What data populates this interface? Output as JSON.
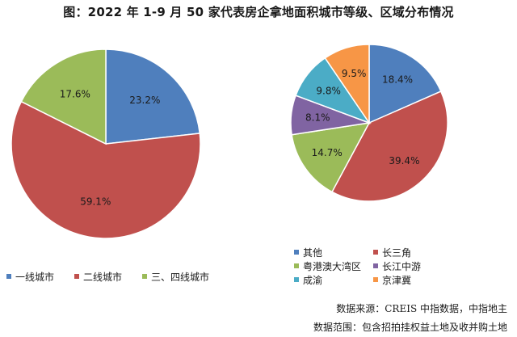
{
  "title": "图：2022 年 1-9 月 50 家代表房企拿地面积城市等级、区域分布情况",
  "source": "数据来源：CREIS 中指数据，中指地主",
  "scope": "数据范围：包含招拍挂权益土地及收并购土地",
  "chart_data": [
    {
      "type": "pie",
      "title": "",
      "categories": [
        "一线城市",
        "二线城市",
        "三、四线城市"
      ],
      "values": [
        23.2,
        59.1,
        17.6
      ],
      "value_labels": [
        "23.2%",
        "59.1%",
        "17.6%"
      ],
      "colors": [
        "#4f7fbd",
        "#c0504d",
        "#9bbb59"
      ],
      "legend": "bottom"
    },
    {
      "type": "pie",
      "title": "",
      "categories": [
        "其他",
        "长三角",
        "粤港澳大湾区",
        "长江中游",
        "成渝",
        "京津冀"
      ],
      "values": [
        18.4,
        39.4,
        14.7,
        8.1,
        9.8,
        9.5
      ],
      "value_labels": [
        "18.4%",
        "39.4%",
        "14.7%",
        "8.1%",
        "9.8%",
        "9.5%"
      ],
      "colors": [
        "#4f7fbd",
        "#c0504d",
        "#9bbb59",
        "#8064a2",
        "#4bacc6",
        "#f79646"
      ],
      "legend": "bottom"
    }
  ]
}
